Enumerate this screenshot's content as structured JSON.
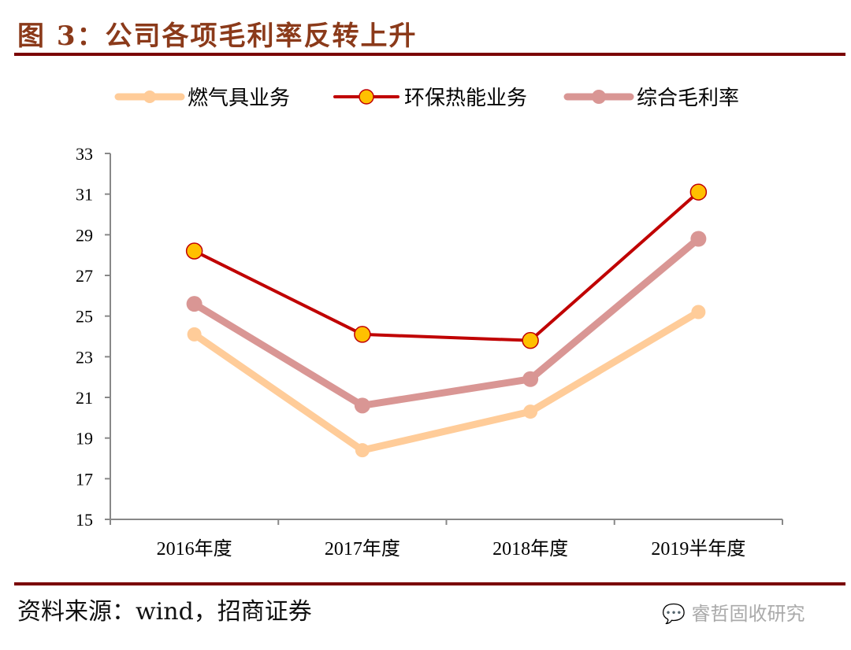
{
  "title": "图 3：公司各项毛利率反转上升",
  "source": "资料来源：wind，招商证券",
  "watermark": "睿哲固收研究",
  "watermark_icon": "wechat-icon",
  "chart_data": {
    "type": "line",
    "title": "",
    "xlabel": "",
    "ylabel": "",
    "categories": [
      "2016年度",
      "2017年度",
      "2018年度",
      "2019半年度"
    ],
    "ylim": [
      15,
      33
    ],
    "yticks": [
      "15",
      "17",
      "19",
      "21",
      "23",
      "25",
      "27",
      "29",
      "31",
      "33"
    ],
    "grid": false,
    "legend_position": "top",
    "series": [
      {
        "name": "燃气具业务",
        "values": [
          24.1,
          18.4,
          20.3,
          25.2
        ],
        "color": "#FFCC99",
        "marker_fill": "#FFCC99",
        "marker_stroke": "#FFCC99"
      },
      {
        "name": "环保热能业务",
        "values": [
          28.2,
          24.1,
          23.8,
          31.1
        ],
        "color": "#C00000",
        "marker_fill": "#FFC000",
        "marker_stroke": "#C00000"
      },
      {
        "name": "综合毛利率",
        "values": [
          25.6,
          20.6,
          21.9,
          28.8
        ],
        "color": "#D99694",
        "marker_fill": "#D99694",
        "marker_stroke": "#D99694"
      }
    ]
  }
}
